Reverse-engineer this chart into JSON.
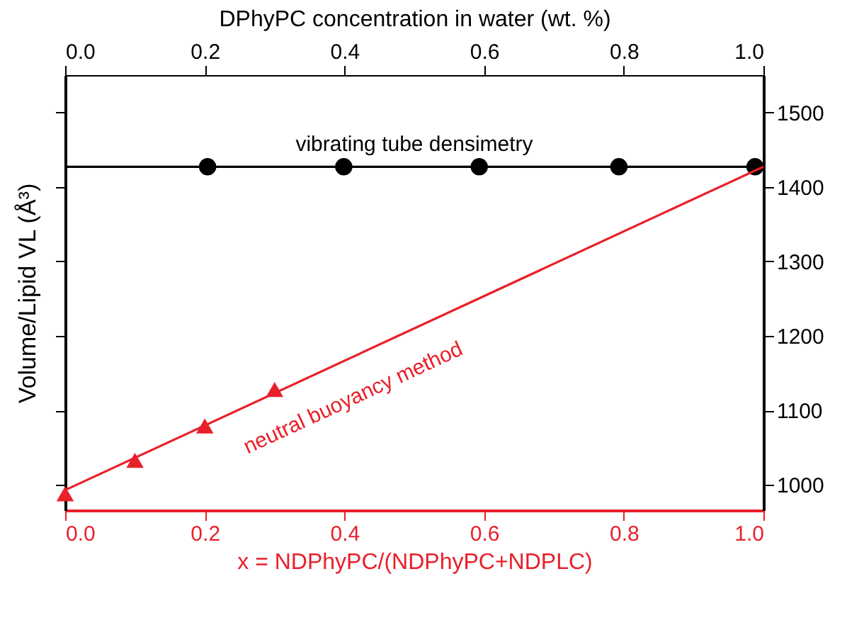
{
  "chart_data": {
    "type": "scatter",
    "x2label": "DPhyPC concentration in water (wt. %)",
    "xlabel": "x = NDPhyPC/(NDPhyPC+NDPLC)",
    "ylabel": "Volume/Lipid VL (Å³)",
    "xlim": [
      0,
      1
    ],
    "xticks": [
      {
        "value": 0,
        "label": "0.0"
      },
      0.2,
      0.4,
      0.6,
      0.8,
      {
        "value": 1,
        "label": "1.0"
      }
    ],
    "x2lim": [
      0,
      1
    ],
    "x2ticks": [
      {
        "value": 0,
        "label": "0.0"
      },
      0.2,
      0.4,
      0.6,
      0.8,
      {
        "value": 1,
        "label": "1.0"
      }
    ],
    "ylim": [
      966,
      1550
    ],
    "yticks": [
      1000,
      1100,
      1200,
      1300,
      1400,
      1500
    ],
    "grid": false,
    "series": [
      {
        "type": "line",
        "axis": "x2",
        "color": "#000000",
        "marker": "none",
        "x": [
          0,
          1
        ],
        "values": [
          1427,
          1427
        ]
      },
      {
        "axis": "x2",
        "color": "#000000",
        "marker": "circle",
        "x": [
          0.204,
          0.399,
          0.593,
          0.793,
          0.988
        ],
        "values": [
          1427,
          1427,
          1427,
          1427,
          1427
        ]
      },
      {
        "type": "line",
        "color": "#e8202a",
        "marker": "none",
        "x": [
          0,
          1
        ],
        "values": [
          993,
          1427
        ]
      },
      {
        "color": "#e8202a",
        "marker": "triangle",
        "x": [
          0,
          0.1,
          0.2,
          0.3
        ],
        "values": [
          988,
          1033,
          1079,
          1128
        ]
      }
    ],
    "annotations": [
      "vibrating tube densimetry",
      "neutral buoyancy method"
    ]
  }
}
